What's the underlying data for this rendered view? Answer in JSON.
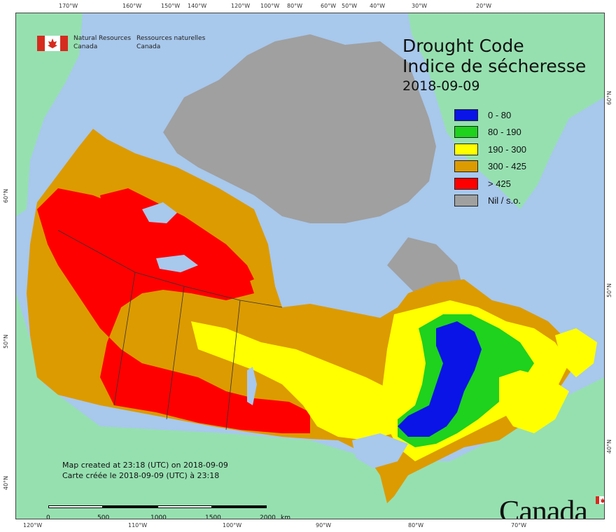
{
  "agency": {
    "en_line1": "Natural Resources",
    "en_line2": "Canada",
    "fr_line1": "Ressources naturelles",
    "fr_line2": "Canada"
  },
  "title": {
    "en": "Drought Code",
    "fr": "Indice de sécheresse",
    "date": "2018-09-09"
  },
  "legend": [
    {
      "label": "0 - 80",
      "color": "#0a14e6"
    },
    {
      "label": "80 - 190",
      "color": "#1ed21e"
    },
    {
      "label": "190 - 300",
      "color": "#ffff00"
    },
    {
      "label": "300 - 425",
      "color": "#dc9b00"
    },
    {
      "label": "> 425",
      "color": "#ff0000"
    },
    {
      "label": "Nil / s.o.",
      "color": "#a0a0a0"
    }
  ],
  "map_colors": {
    "water": "#a8c8ec",
    "outside_land": "#96e0b0",
    "nil": "#a0a0a0"
  },
  "top_ticks": [
    "170°W",
    "160°W",
    "150°W",
    "140°W",
    "120°W",
    "100°W",
    "80°W",
    "60°W",
    "50°W",
    "40°W",
    "30°W",
    "20°W"
  ],
  "bottom_ticks": [
    "120°W",
    "110°W",
    "100°W",
    "90°W",
    "80°W",
    "70°W"
  ],
  "left_ticks": [
    "60°N",
    "50°N",
    "40°N"
  ],
  "right_ticks": [
    "60°N",
    "50°N",
    "40°N"
  ],
  "created": {
    "en": "Map created at 23:18 (UTC) on 2018-09-09",
    "fr": "Carte créée le 2018-09-09 (UTC) à 23:18"
  },
  "scale": {
    "labels": [
      "0",
      "500",
      "1000",
      "1500",
      "2000"
    ],
    "unit": "km"
  },
  "wordmark": "Canada"
}
